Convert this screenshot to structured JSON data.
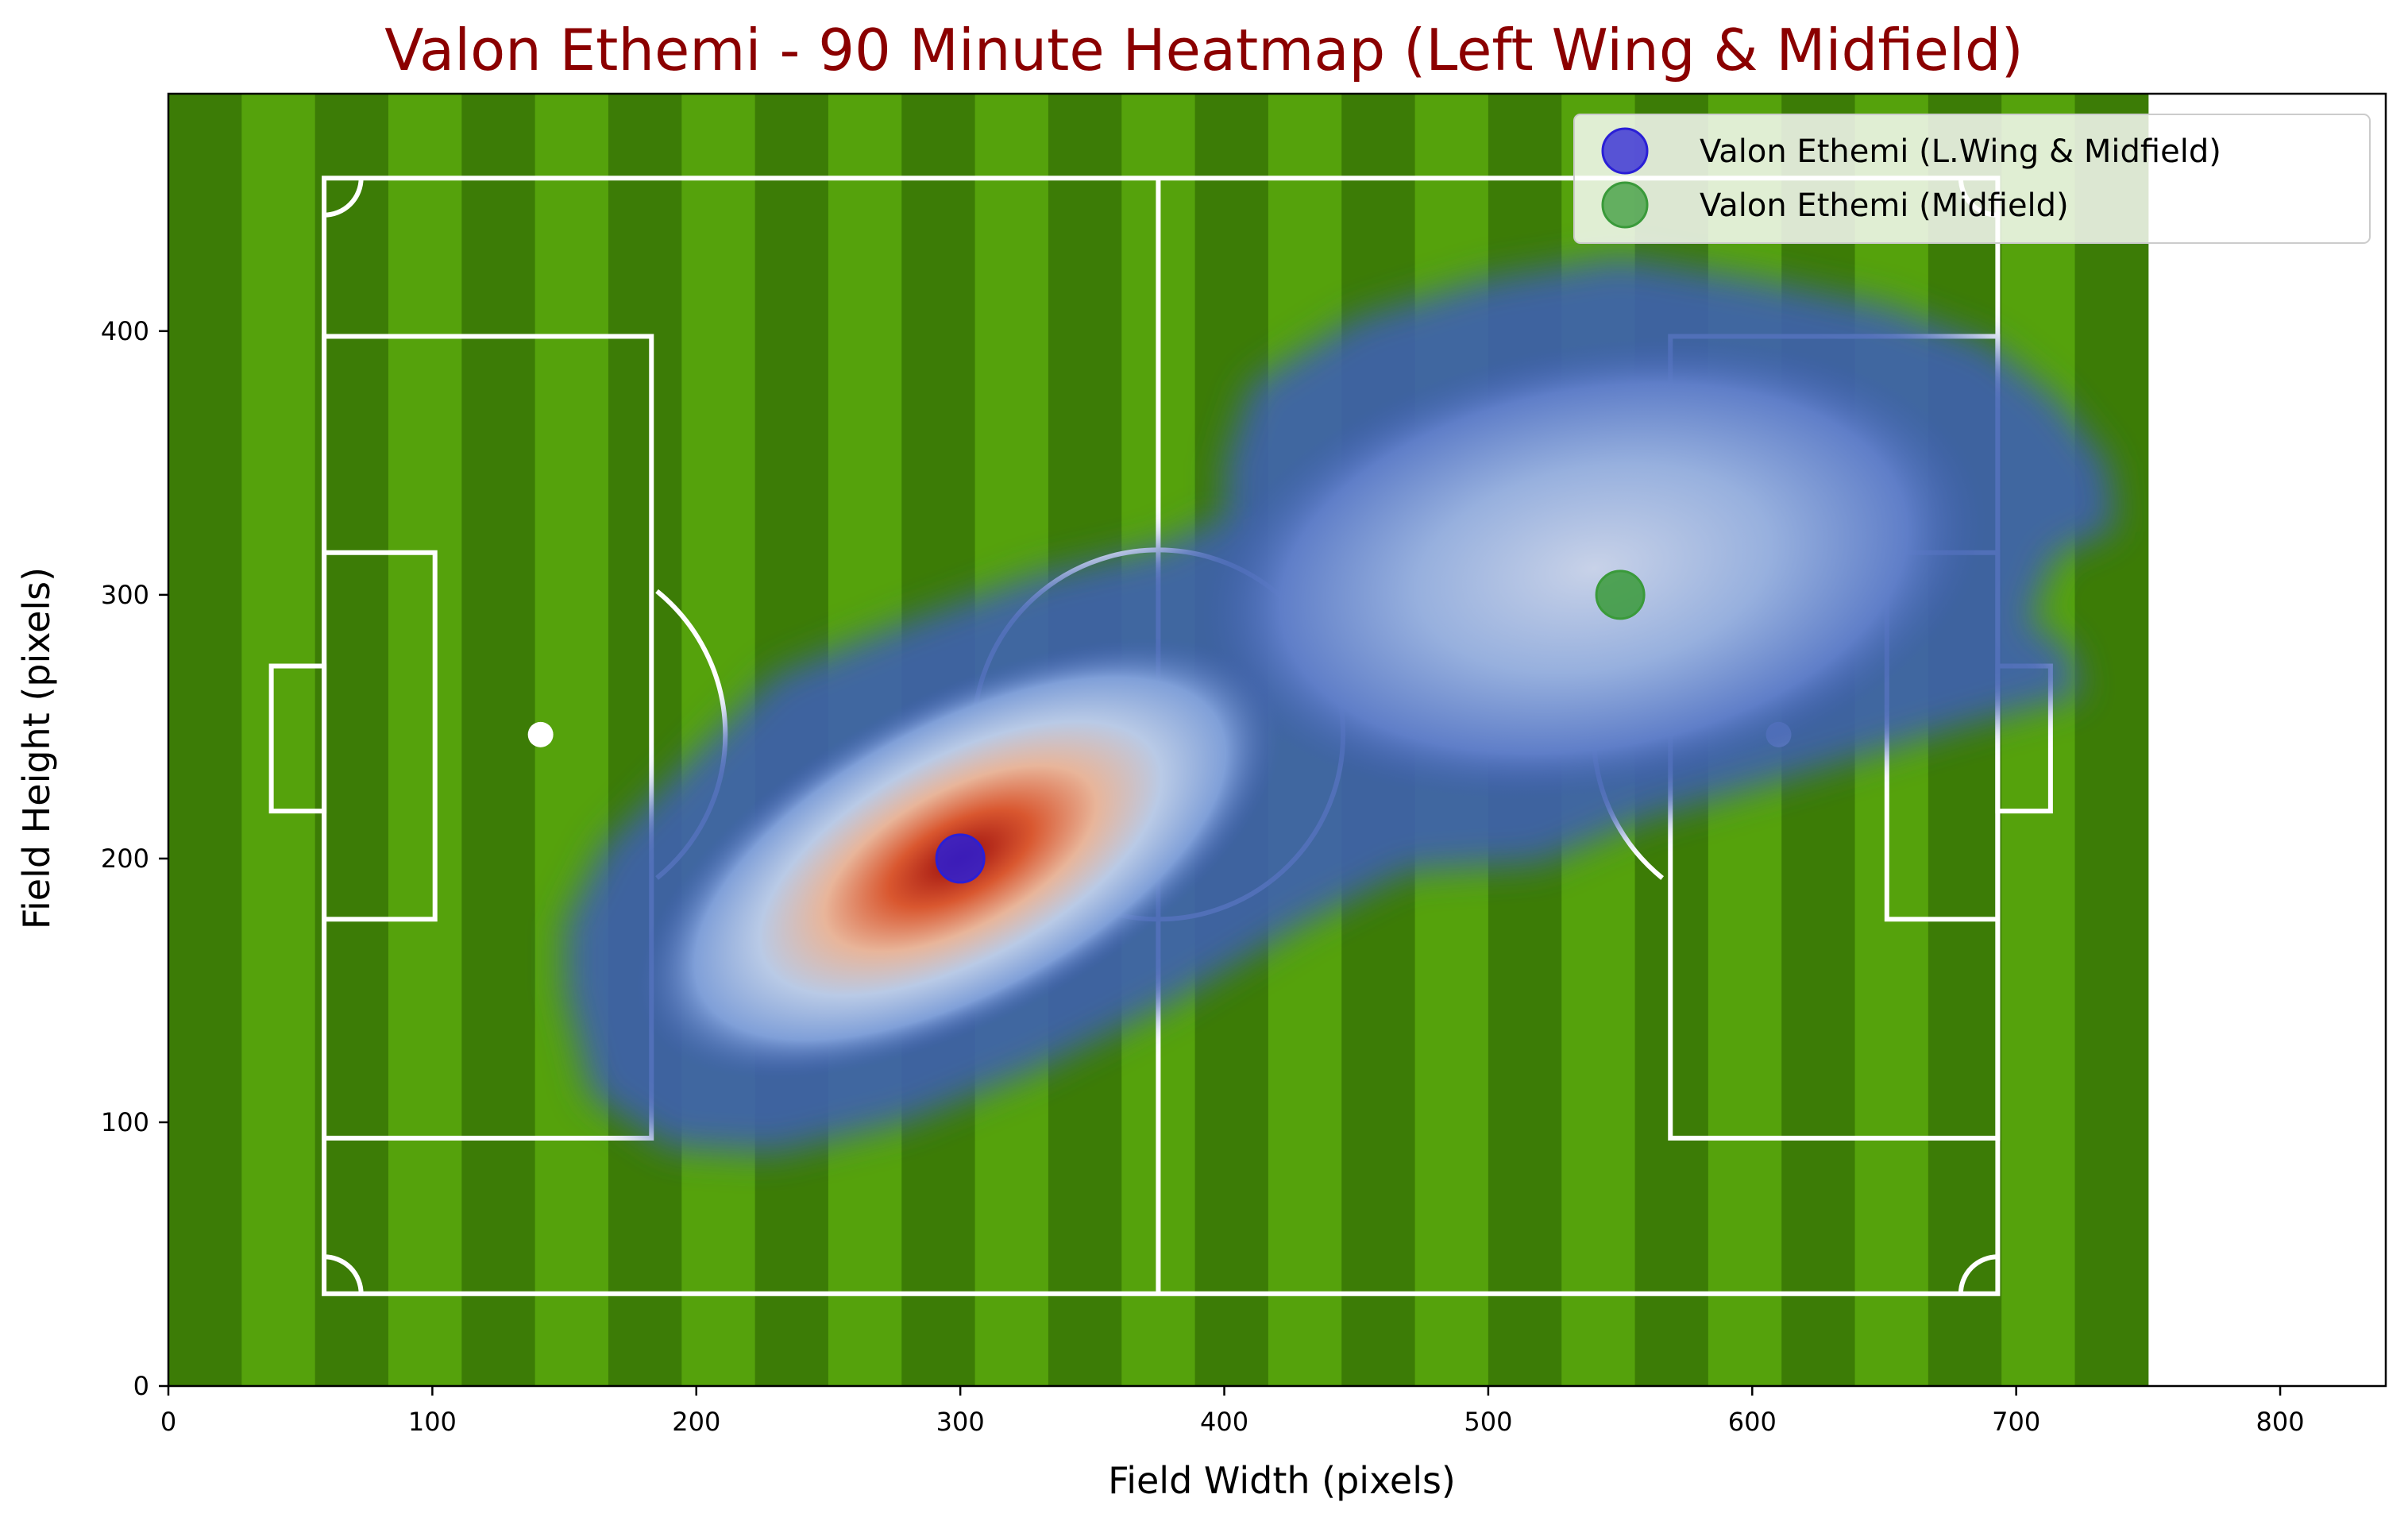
{
  "chart_data": {
    "type": "heatmap",
    "title": "Valon Ethemi - 90 Minute Heatmap (Left Wing & Midfield)",
    "xlabel": "Field Width (pixels)",
    "ylabel": "Field Height (pixels)",
    "xlim": [
      0,
      840
    ],
    "ylim": [
      0,
      490
    ],
    "xticks": [
      0,
      100,
      200,
      300,
      400,
      500,
      600,
      700,
      800
    ],
    "yticks": [
      0,
      100,
      200,
      300,
      400
    ],
    "pitch_extent": {
      "x": [
        0,
        750
      ],
      "y": [
        0,
        490
      ]
    },
    "legend_position": "top-right",
    "series": [
      {
        "name": "Valon Ethemi (L.Wing & Midfield)",
        "x": [
          300
        ],
        "y": [
          200
        ],
        "color": "#2a1fd6"
      },
      {
        "name": "Valon Ethemi (Midfield)",
        "x": [
          550
        ],
        "y": [
          300
        ],
        "color": "#3a9a3a"
      }
    ],
    "density_peaks": [
      {
        "x": 300,
        "y": 200,
        "intensity": 1.0
      },
      {
        "x": 540,
        "y": 310,
        "intensity": 0.5
      }
    ],
    "colors": {
      "title": "#8b0000",
      "grass_dark": "#3c7c06",
      "grass_light": "#55a20c",
      "lines": "#ffffff",
      "density_low": "#3f5fb0",
      "density_high": "#b51c1c"
    }
  }
}
